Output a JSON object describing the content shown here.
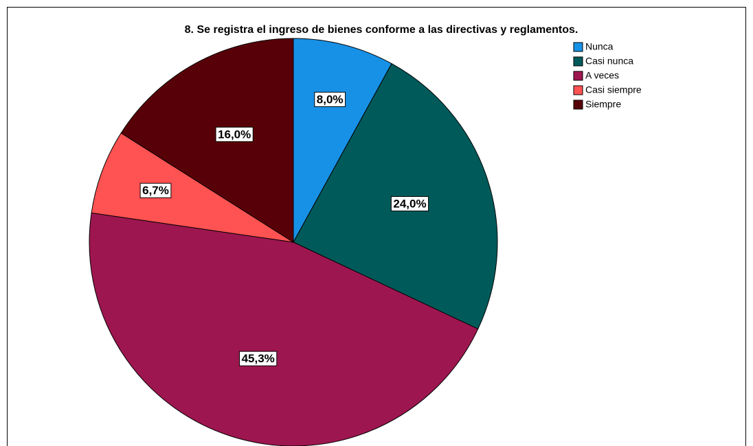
{
  "chart_data": {
    "type": "pie",
    "title": "8. Se registra el ingreso de bienes conforme a las directivas y reglamentos.",
    "categories": [
      "Nunca",
      "Casi nunca",
      "A veces",
      "Casi siempre",
      "Siempre"
    ],
    "values": [
      8.0,
      24.0,
      45.3,
      6.7,
      16.0
    ],
    "value_labels": [
      "8,0%",
      "24,0%",
      "45,3%",
      "6,7%",
      "16,0%"
    ],
    "colors": [
      "#1791e6",
      "#005a5a",
      "#9e1650",
      "#ff5252",
      "#580008"
    ],
    "legend": "top-right"
  }
}
